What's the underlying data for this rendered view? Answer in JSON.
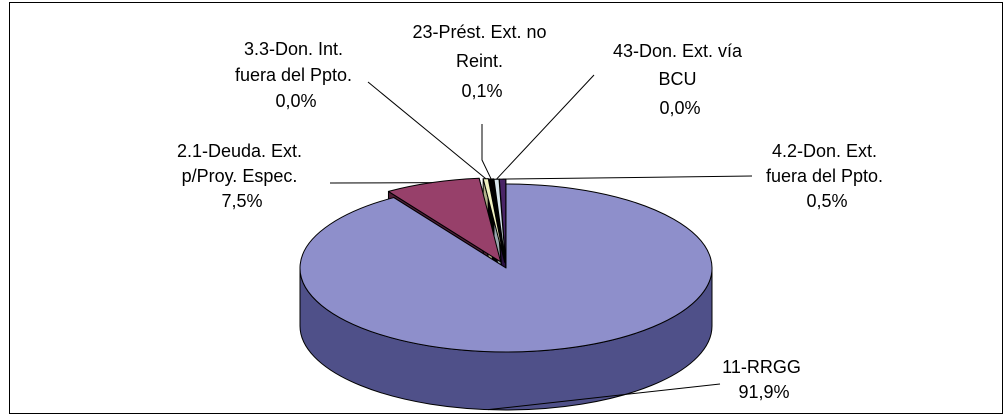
{
  "chart_data": {
    "type": "pie",
    "style": "3d-exploded",
    "title": "",
    "legend": "none",
    "slices": [
      {
        "name": "11-RRGG",
        "value": 91.9,
        "value_label": "91,9%",
        "label_lines": [
          "11-RRGG"
        ],
        "color": "#8e8fcb",
        "side_color": "#4f5089"
      },
      {
        "name": "2.1-Deuda. Ext. p/Proy. Espec.",
        "value": 7.5,
        "value_label": "7,5%",
        "label_lines": [
          "2.1-Deuda. Ext.",
          "p/Proy. Espec."
        ],
        "color": "#97406a",
        "side_color": "#4d1f37"
      },
      {
        "name": "3.3-Don. Int. fuera del Ppto.",
        "value": 0.0,
        "value_label": "0,0%",
        "label_lines": [
          "3.3-Don. Int.",
          "fuera del Ppto."
        ],
        "color": "#f0f0c0",
        "side_color": "#b0b088"
      },
      {
        "name": "23-Prést. Ext. no Reint.",
        "value": 0.1,
        "value_label": "0,1%",
        "label_lines": [
          "23-Prést. Ext. no",
          "Reint."
        ],
        "color": "#000000",
        "side_color": "#000000"
      },
      {
        "name": "43-Don. Ext. vía BCU",
        "value": 0.0,
        "value_label": "0,0%",
        "label_lines": [
          "43-Don. Ext. vía",
          "BCU"
        ],
        "color": "#d8e6ec",
        "side_color": "#9aa8ae"
      },
      {
        "name": "4.2-Don. Ext. fuera del Ppto.",
        "value": 0.5,
        "value_label": "0,5%",
        "label_lines": [
          "4.2-Don. Ext.",
          "fuera del Ppto."
        ],
        "color": "#4a2466",
        "side_color": "#2a1040"
      }
    ]
  }
}
